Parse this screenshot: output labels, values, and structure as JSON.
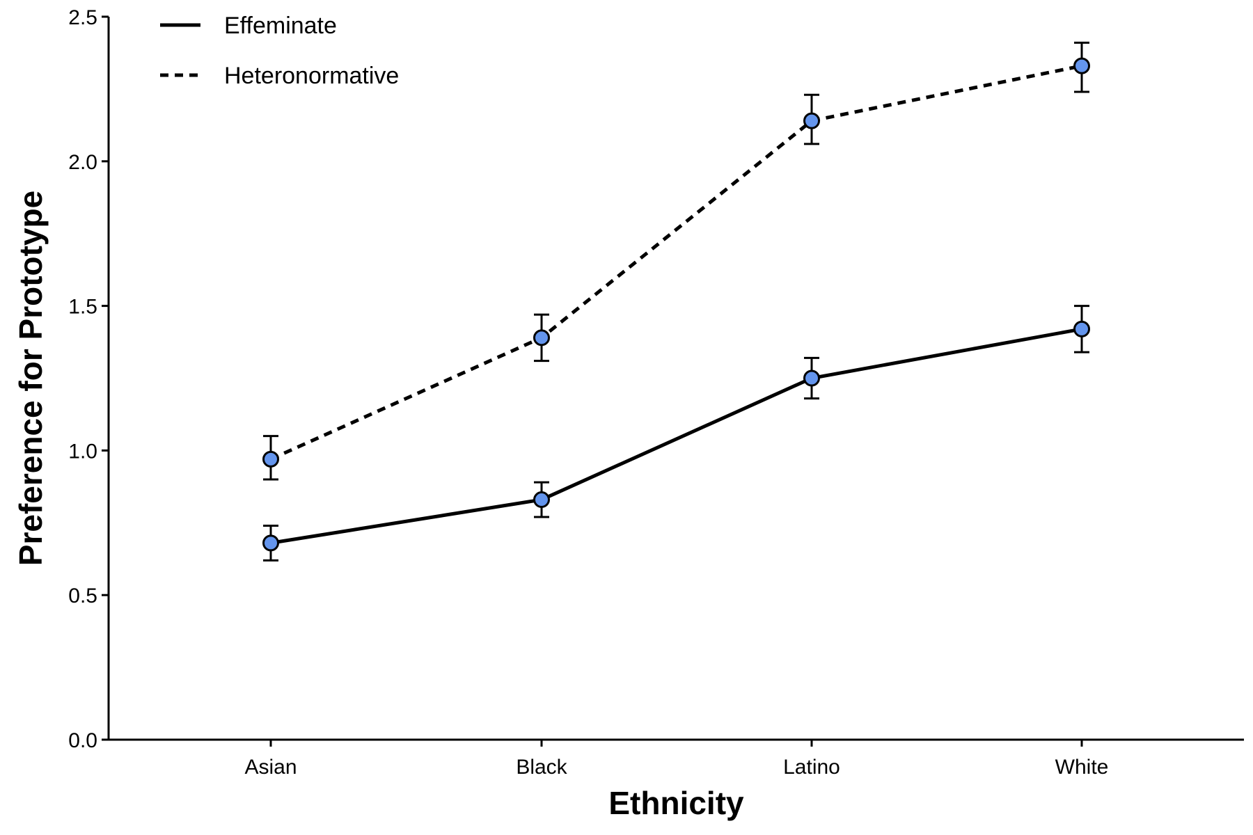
{
  "chart_data": {
    "type": "line",
    "title": "",
    "xlabel": "Ethnicity",
    "ylabel": "Preference for Prototype",
    "categories": [
      "Asian",
      "Black",
      "Latino",
      "White"
    ],
    "ylim": [
      0,
      2.5
    ],
    "yticks": [
      "0.0",
      "0.5",
      "1.0",
      "1.5",
      "2.0",
      "2.5"
    ],
    "grid": false,
    "legend_position": "top-left",
    "marker_color": "#6495ED",
    "series": [
      {
        "name": "Effeminate",
        "line_style": "solid",
        "values": [
          0.68,
          0.83,
          1.25,
          1.42
        ],
        "err_low": [
          0.62,
          0.77,
          1.18,
          1.34
        ],
        "err_high": [
          0.74,
          0.89,
          1.32,
          1.5
        ]
      },
      {
        "name": "Heteronormative",
        "line_style": "dashed",
        "values": [
          0.97,
          1.39,
          2.14,
          2.33
        ],
        "err_low": [
          0.9,
          1.31,
          2.06,
          2.24
        ],
        "err_high": [
          1.05,
          1.47,
          2.23,
          2.41
        ]
      }
    ]
  }
}
